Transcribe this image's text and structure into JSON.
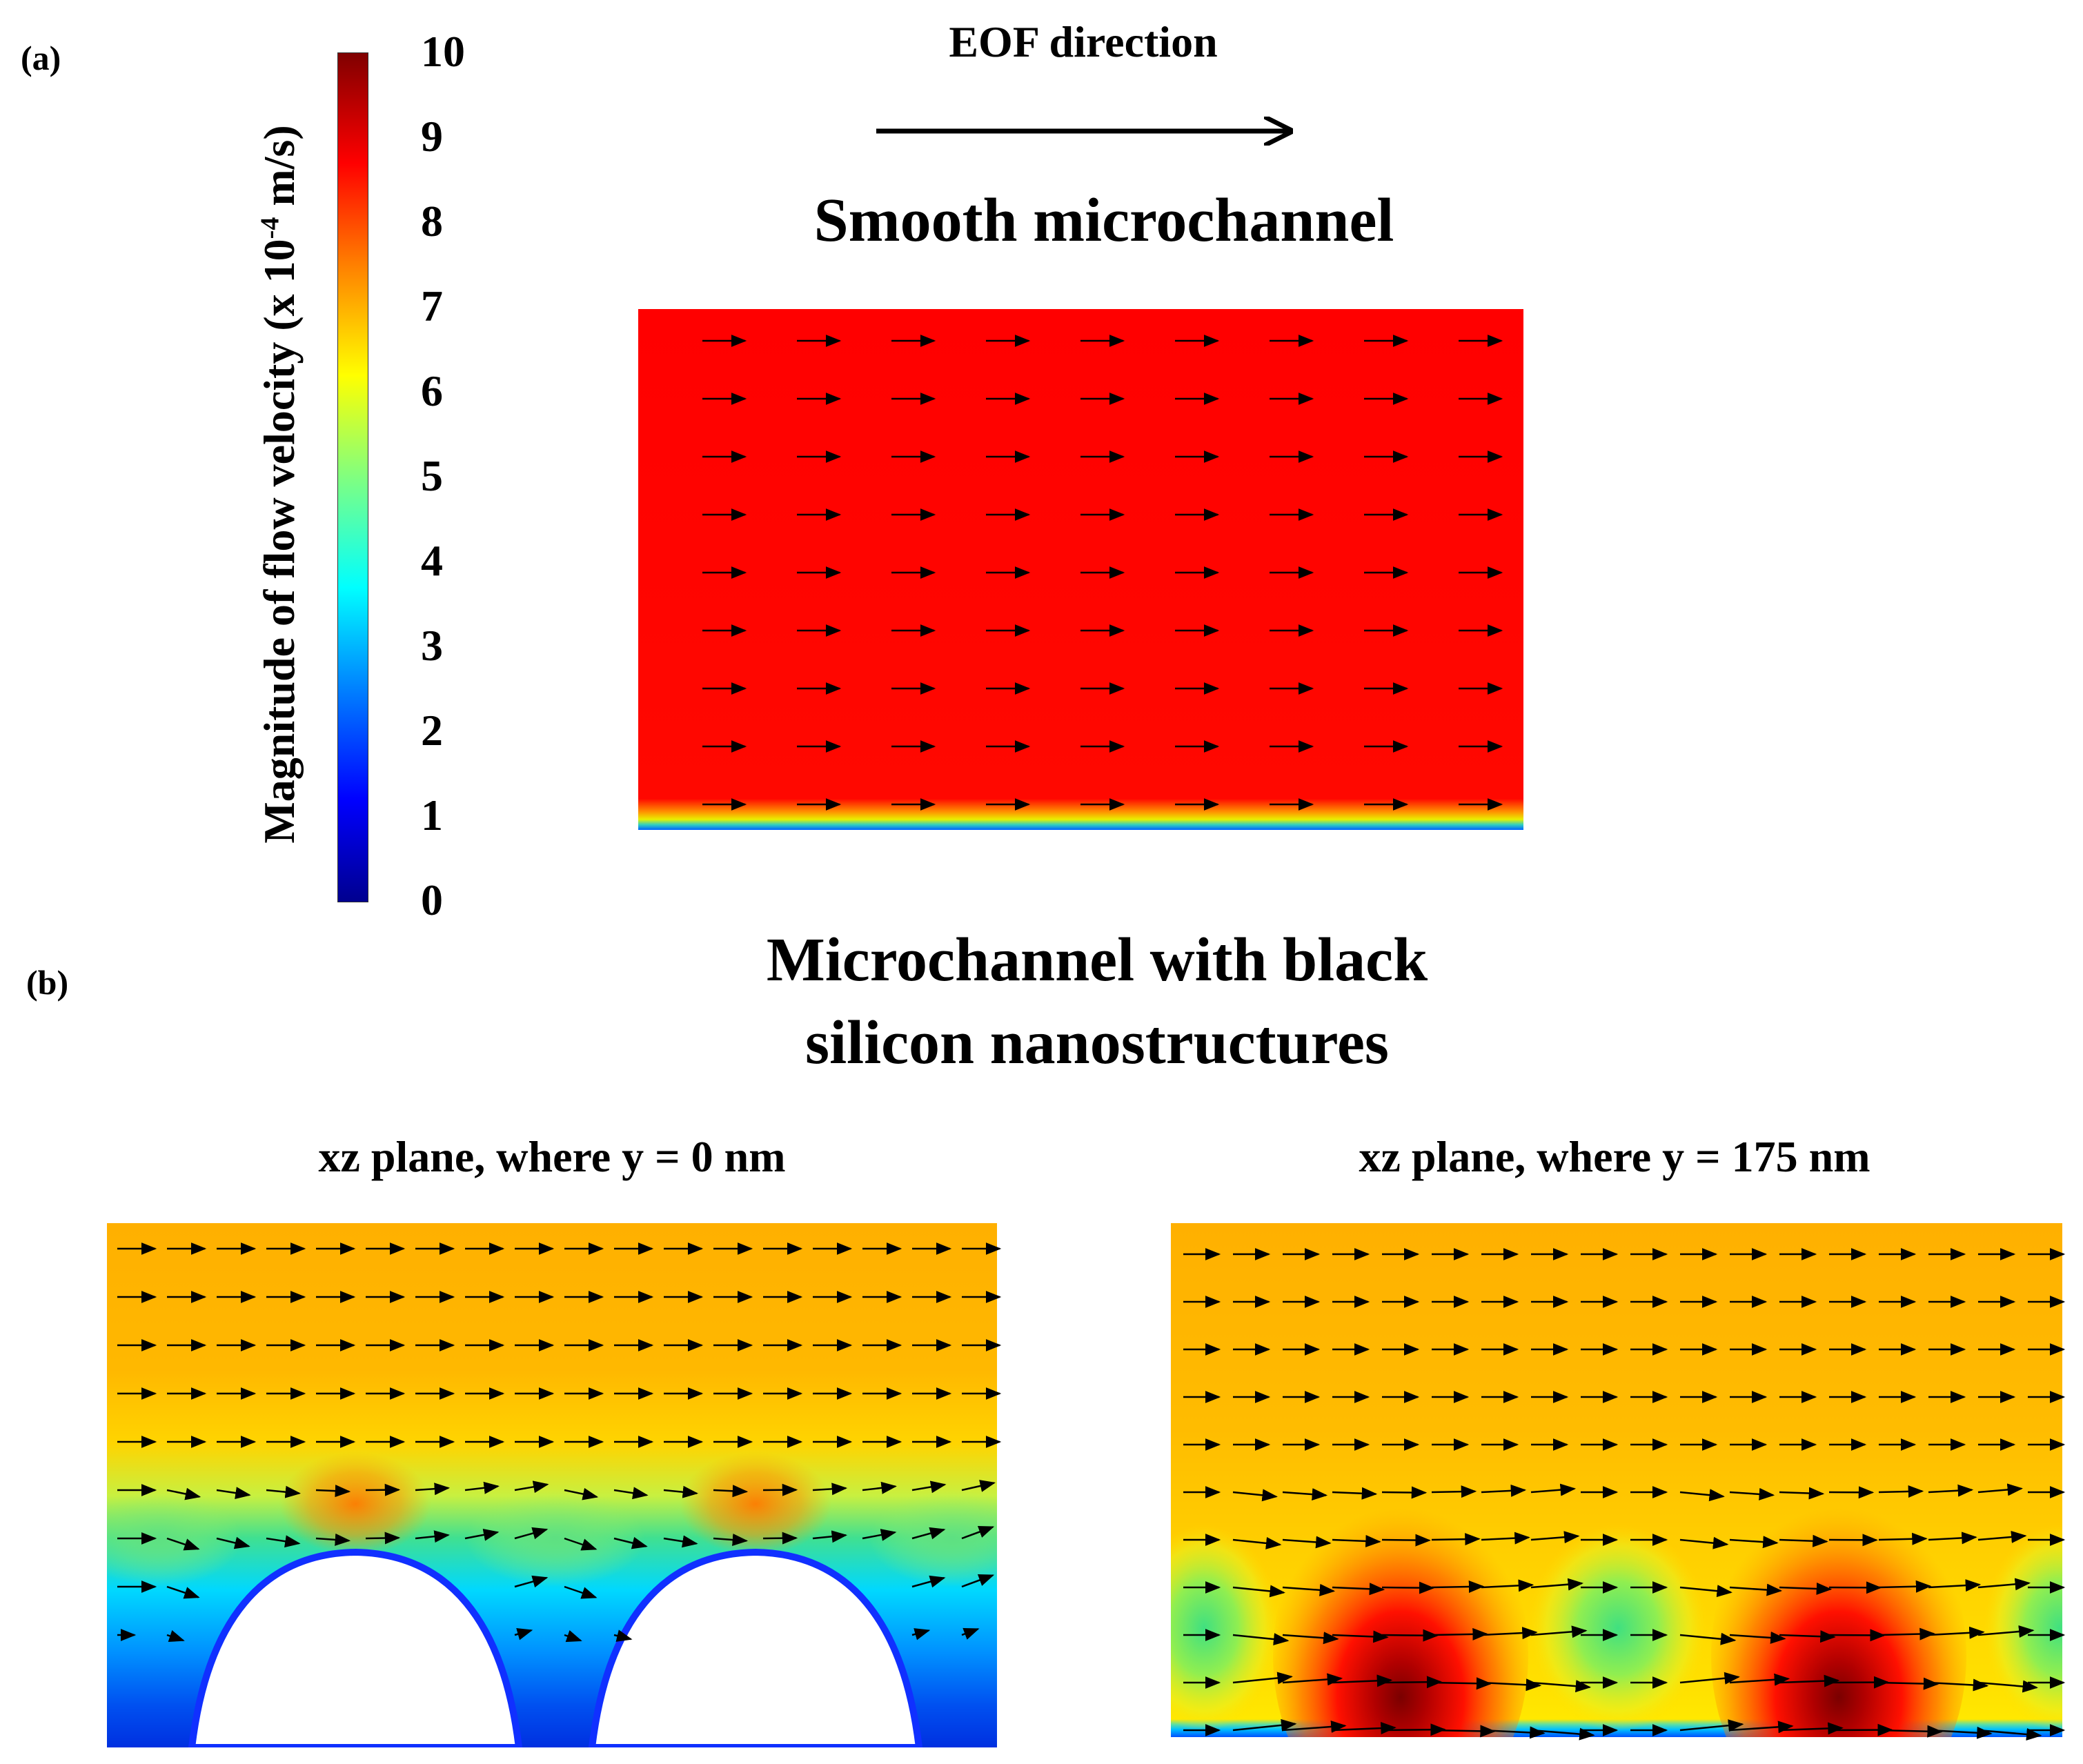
{
  "panel_a": {
    "label": "(a)",
    "eof_label": "EOF direction",
    "title": "Smooth microchannel"
  },
  "colorbar": {
    "label_prefix": "Magnitude of flow velocity (x 10",
    "label_exp": "-4",
    "label_suffix": " m/s)",
    "ticks": [
      "0",
      "1",
      "2",
      "3",
      "4",
      "5",
      "6",
      "7",
      "8",
      "9",
      "10"
    ],
    "min": 0,
    "max": 10,
    "colormap": [
      "#00008f",
      "#0000ff",
      "#0080ff",
      "#00ffff",
      "#80ff80",
      "#ffff00",
      "#ff8000",
      "#ff0000",
      "#800000"
    ]
  },
  "panel_b": {
    "label": "(b)",
    "title_line1": "Microchannel with black",
    "title_line2": "silicon nanostructures",
    "left_subtitle": "xz plane, where y = 0 nm",
    "right_subtitle": "xz plane, where y = 175 nm"
  },
  "chart_data": [
    {
      "type": "heatmap",
      "title": "Smooth microchannel",
      "quantity": "Magnitude of flow velocity (x 10^-4 m/s)",
      "bulk_velocity": 9.2,
      "wall_velocity": 0,
      "vector_grid": {
        "columns": 9,
        "rows": 9,
        "direction": "+x"
      }
    },
    {
      "type": "heatmap",
      "title": "xz plane, where y = 0 nm",
      "quantity": "Magnitude of flow velocity (x 10^-4 m/s)",
      "bulk_velocity": 7.6,
      "peak_velocity": 8.2,
      "near_wall_velocity": 1.5,
      "nanostructures": 2,
      "vector_grid": {
        "columns": 18,
        "rows": 9,
        "direction": "+x"
      }
    },
    {
      "type": "heatmap",
      "title": "xz plane, where y = 175 nm",
      "quantity": "Magnitude of flow velocity (x 10^-4 m/s)",
      "bulk_velocity": 7.3,
      "peak_velocity": 9.8,
      "trough_velocity": 5.2,
      "vector_grid": {
        "columns": 18,
        "rows": 11,
        "direction": "+x"
      }
    }
  ]
}
